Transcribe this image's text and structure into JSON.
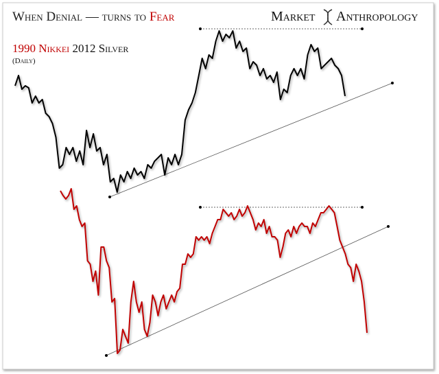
{
  "chart_data": {
    "type": "line",
    "title": "When Denial — turns to",
    "title_emphasis": "Fear",
    "brand": [
      "Market",
      "Anthropology"
    ],
    "note": "(Daily)",
    "series": [
      {
        "name": "2012 Silver",
        "color": "#000000",
        "values": [
          420,
          435,
          415,
          420,
          417,
          395,
          405,
          395,
          400,
          380,
          375,
          365,
          345,
          300,
          305,
          330,
          320,
          330,
          310,
          325,
          305,
          355,
          330,
          350,
          325,
          330,
          305,
          320,
          280,
          285,
          265,
          290,
          280,
          295,
          285,
          300,
          290,
          295,
          285,
          305,
          300,
          310,
          315,
          320,
          290,
          315,
          305,
          320,
          305,
          320,
          370,
          385,
          395,
          410,
          435,
          460,
          445,
          465,
          460,
          485,
          500,
          485,
          495,
          490,
          500,
          475,
          485,
          470,
          475,
          445,
          455,
          450,
          435,
          445,
          430,
          435,
          425,
          440,
          400,
          415,
          410,
          435,
          445,
          435,
          445,
          430,
          465,
          480,
          470,
          475,
          445,
          450,
          455,
          460,
          450,
          445,
          435,
          405
        ]
      },
      {
        "name": "1990 Nikkei",
        "color": "#c00000",
        "values": [
          267,
          260,
          255,
          260,
          270,
          240,
          245,
          225,
          215,
          220,
          165,
          160,
          135,
          150,
          115,
          185,
          185,
          165,
          155,
          105,
          110,
          30,
          35,
          65,
          55,
          45,
          105,
          135,
          105,
          90,
          105,
          65,
          55,
          75,
          115,
          105,
          85,
          105,
          115,
          95,
          105,
          115,
          105,
          120,
          125,
          160,
          160,
          175,
          170,
          175,
          200,
          195,
          200,
          195,
          200,
          190,
          205,
          215,
          225,
          225,
          240,
          235,
          230,
          235,
          225,
          230,
          240,
          230,
          235,
          245,
          235,
          225,
          210,
          220,
          215,
          225,
          205,
          215,
          200,
          200,
          195,
          170,
          185,
          205,
          210,
          200,
          215,
          205,
          215,
          220,
          215,
          215,
          205,
          220,
          215,
          225,
          235,
          235,
          240,
          245,
          240,
          235,
          215,
          195,
          185,
          175,
          160,
          155,
          135,
          160,
          150,
          135,
          105,
          60
        ]
      }
    ]
  }
}
